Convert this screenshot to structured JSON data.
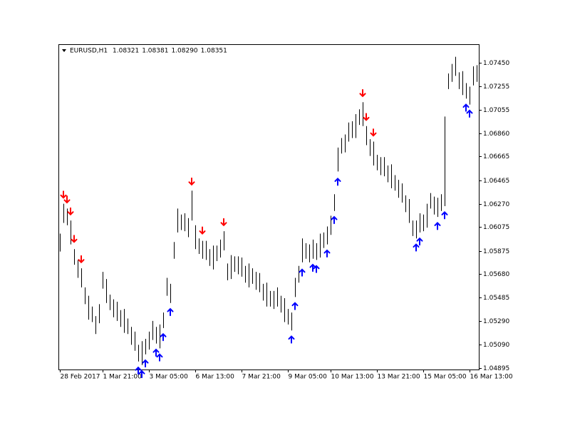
{
  "chart_data": {
    "type": "ohlc",
    "title": "EURUSD,H1",
    "quote": [
      1.08321,
      1.08381,
      {
        "value": 1.0829,
        "label": "1.08290"
      },
      1.08351
    ],
    "bar_color": "#000000",
    "sell_color": "#ff0000",
    "buy_color": "#0000ff",
    "xlim": [
      -0.4,
      117.6
    ],
    "ylim": [
      1.04883,
      1.07605
    ],
    "yticks": [
      {
        "value": 1.0745,
        "label": "1.07450"
      },
      1.07255,
      1.07055,
      {
        "value": 1.0686,
        "label": "1.06860"
      },
      1.06665,
      1.06465,
      {
        "value": 1.0627,
        "label": "1.06270"
      },
      1.06075,
      1.05875,
      {
        "value": 1.0568,
        "label": "1.05680"
      },
      1.05485,
      {
        "value": 1.0529,
        "label": "1.05290"
      },
      {
        "value": 1.0509,
        "label": "1.05090"
      },
      1.04895
    ],
    "xticks": [
      {
        "value": 0,
        "label": "28 Feb 2017"
      },
      {
        "value": 12,
        "label": "1 Mar 21:00"
      },
      {
        "value": 25,
        "label": "3 Mar 05:00"
      },
      {
        "value": 38,
        "label": "6 Mar 13:00"
      },
      {
        "value": 51,
        "label": "7 Mar 21:00"
      },
      {
        "value": 64,
        "label": "9 Mar 05:00"
      },
      {
        "value": 76,
        "label": "10 Mar 13:00"
      },
      {
        "value": 89,
        "label": "13 Mar 21:00"
      },
      {
        "value": 102,
        "label": "15 Mar 05:00"
      },
      {
        "value": 115,
        "label": "16 Mar 13:00"
      }
    ],
    "high": [
      1.0602,
      1.0627,
      1.0623,
      1.0613,
      1.0589,
      1.058,
      1.0573,
      1.0557,
      1.055,
      1.0541,
      1.0533,
      1.0543,
      1.057,
      1.0564,
      1.0551,
      1.0547,
      1.0545,
      1.0538,
      1.0539,
      1.0531,
      1.0524,
      1.052,
      1.0509,
      1.0512,
      1.0514,
      1.052,
      1.0529,
      1.0524,
      1.0526,
      1.0536,
      1.0565,
      1.056,
      1.0595,
      1.0623,
      1.0618,
      1.0619,
      1.0615,
      1.0638,
      1.0609,
      1.0598,
      1.0596,
      1.0596,
      1.0589,
      1.0592,
      1.0592,
      1.0597,
      1.0604,
      1.0577,
      1.0584,
      1.0583,
      1.0583,
      1.0582,
      1.0575,
      1.0577,
      1.0573,
      1.057,
      1.0569,
      1.056,
      1.0561,
      1.0554,
      1.0554,
      1.0557,
      1.055,
      1.0548,
      1.0539,
      1.0536,
      1.0565,
      1.0575,
      1.0598,
      1.0594,
      1.0593,
      1.0597,
      1.0594,
      1.0602,
      1.0603,
      1.0608,
      1.0617,
      1.0635,
      1.0674,
      1.0682,
      1.0685,
      1.0695,
      1.0696,
      1.0702,
      1.0706,
      1.0712,
      1.0692,
      1.0681,
      1.0679,
      1.0668,
      1.0666,
      1.0666,
      1.0659,
      1.066,
      1.0651,
      1.0647,
      1.0644,
      1.0634,
      1.0631,
      1.0613,
      1.0613,
      1.0619,
      1.0618,
      1.0627,
      1.0636,
      1.0633,
      1.0632,
      1.0635,
      1.07,
      1.0736,
      1.0744,
      1.075,
      1.0737,
      1.0738,
      1.0728,
      1.0725,
      1.0742,
      1.0743
    ],
    "low": [
      1.0587,
      1.0611,
      1.0609,
      1.0593,
      1.0576,
      1.0565,
      1.0557,
      1.0543,
      1.053,
      1.0528,
      1.0518,
      1.0527,
      1.0556,
      1.0544,
      1.0538,
      1.0532,
      1.0529,
      1.0524,
      1.0519,
      1.0518,
      1.0509,
      1.0504,
      1.0495,
      1.0492,
      1.0501,
      1.0505,
      1.0513,
      1.051,
      1.0506,
      1.0523,
      1.055,
      1.0544,
      1.0581,
      1.0603,
      1.0605,
      1.0604,
      1.0599,
      1.0613,
      1.0589,
      1.0585,
      1.0581,
      1.058,
      1.0575,
      1.0572,
      1.0579,
      1.0582,
      1.0588,
      1.0563,
      1.0564,
      1.057,
      1.0568,
      1.0566,
      1.0561,
      1.0557,
      1.056,
      1.0555,
      1.0553,
      1.0546,
      1.0541,
      1.0541,
      1.0539,
      1.0541,
      1.0536,
      1.0528,
      1.0526,
      1.0521,
      1.0549,
      1.0561,
      1.0578,
      1.0581,
      1.0578,
      1.0581,
      1.058,
      1.0582,
      1.059,
      1.0593,
      1.0601,
      1.0621,
      1.0654,
      1.0669,
      1.067,
      1.0679,
      1.0682,
      1.0682,
      1.0693,
      1.0692,
      1.0676,
      1.0667,
      1.0659,
      1.0655,
      1.0651,
      1.065,
      1.0645,
      1.064,
      1.0638,
      1.0632,
      1.0628,
      1.062,
      1.0611,
      1.06,
      1.0598,
      1.0603,
      1.0604,
      1.0607,
      1.0623,
      1.0618,
      1.0616,
      1.0621,
      1.0625,
      1.0723,
      1.0729,
      1.0734,
      1.0723,
      1.0718,
      1.0715,
      1.071,
      1.0726,
      1.0729
    ],
    "sell_signals": [
      {
        "bar": 1,
        "price": 1.0632
      },
      {
        "bar": 2,
        "price": 1.0628
      },
      {
        "bar": 3,
        "price": 1.0618
      },
      {
        "bar": 4,
        "price": 1.0595
      },
      {
        "bar": 6,
        "price": 1.0578
      },
      {
        "bar": 37,
        "price": 1.0643
      },
      {
        "bar": 40,
        "price": 1.0602
      },
      {
        "bar": 46,
        "price": 1.0609
      },
      {
        "bar": 85,
        "price": 1.0717
      },
      {
        "bar": 86,
        "price": 1.0697
      },
      {
        "bar": 88,
        "price": 1.0684
      }
    ],
    "buy_signals": [
      {
        "bar": 22,
        "price": 1.049
      },
      {
        "bar": 23,
        "price": 1.0487
      },
      {
        "bar": 24,
        "price": 1.0496
      },
      {
        "bar": 27,
        "price": 1.0505
      },
      {
        "bar": 28,
        "price": 1.0501
      },
      {
        "bar": 29,
        "price": 1.0518
      },
      {
        "bar": 31,
        "price": 1.0539
      },
      {
        "bar": 65,
        "price": 1.0516
      },
      {
        "bar": 66,
        "price": 1.0544
      },
      {
        "bar": 68,
        "price": 1.0572
      },
      {
        "bar": 71,
        "price": 1.0576
      },
      {
        "bar": 72,
        "price": 1.0575
      },
      {
        "bar": 75,
        "price": 1.0588
      },
      {
        "bar": 77,
        "price": 1.0616
      },
      {
        "bar": 78,
        "price": 1.0648
      },
      {
        "bar": 100,
        "price": 1.0593
      },
      {
        "bar": 101,
        "price": 1.0598
      },
      {
        "bar": 106,
        "price": 1.0611
      },
      {
        "bar": 108,
        "price": 1.062
      },
      {
        "bar": 114,
        "price": 1.071
      },
      {
        "bar": 115,
        "price": 1.0705
      }
    ]
  }
}
